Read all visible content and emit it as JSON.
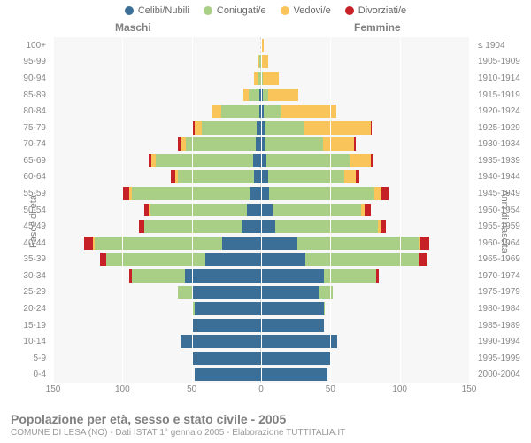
{
  "legend": [
    {
      "label": "Celibi/Nubili",
      "color": "#3b6f97"
    },
    {
      "label": "Coniugati/e",
      "color": "#a9cf86"
    },
    {
      "label": "Vedovi/e",
      "color": "#f9c45a"
    },
    {
      "label": "Divorziati/e",
      "color": "#c62127"
    }
  ],
  "gender_left": "Maschi",
  "gender_right": "Femmine",
  "y_title_left": "Fasce di età",
  "y_title_right": "Anni di nascita",
  "age_labels": [
    "100+",
    "95-99",
    "90-94",
    "85-89",
    "80-84",
    "75-79",
    "70-74",
    "65-69",
    "60-64",
    "55-59",
    "50-54",
    "45-49",
    "40-44",
    "35-39",
    "30-34",
    "25-29",
    "20-24",
    "15-19",
    "10-14",
    "5-9",
    "0-4"
  ],
  "birth_labels": [
    "≤ 1904",
    "1905-1909",
    "1910-1914",
    "1915-1919",
    "1920-1924",
    "1925-1929",
    "1930-1934",
    "1935-1939",
    "1940-1944",
    "1945-1949",
    "1950-1954",
    "1955-1959",
    "1960-1964",
    "1965-1969",
    "1970-1974",
    "1975-1979",
    "1980-1984",
    "1985-1989",
    "1990-1994",
    "1995-1999",
    "2000-2004"
  ],
  "x_ticks": [
    150,
    100,
    50,
    0,
    50,
    100,
    150
  ],
  "x_max": 150,
  "colors": {
    "blue": "#3b6f97",
    "green": "#a9cf86",
    "yellow": "#f9c45a",
    "red": "#c62127",
    "grid": "#ffffff",
    "plot_bg": "#f7f7f7"
  },
  "bars": {
    "male": [
      {
        "b": 0,
        "g": 0,
        "y": 0,
        "r": 0
      },
      {
        "b": 0,
        "g": 1,
        "y": 1,
        "r": 0
      },
      {
        "b": 0,
        "g": 2,
        "y": 3,
        "r": 0
      },
      {
        "b": 1,
        "g": 8,
        "y": 4,
        "r": 0
      },
      {
        "b": 1,
        "g": 28,
        "y": 6,
        "r": 0
      },
      {
        "b": 3,
        "g": 40,
        "y": 5,
        "r": 1
      },
      {
        "b": 4,
        "g": 50,
        "y": 4,
        "r": 2
      },
      {
        "b": 6,
        "g": 70,
        "y": 3,
        "r": 2
      },
      {
        "b": 5,
        "g": 55,
        "y": 2,
        "r": 3
      },
      {
        "b": 8,
        "g": 85,
        "y": 2,
        "r": 5
      },
      {
        "b": 10,
        "g": 70,
        "y": 1,
        "r": 3
      },
      {
        "b": 14,
        "g": 70,
        "y": 0,
        "r": 4
      },
      {
        "b": 28,
        "g": 92,
        "y": 1,
        "r": 7
      },
      {
        "b": 40,
        "g": 72,
        "y": 0,
        "r": 4
      },
      {
        "b": 55,
        "g": 38,
        "y": 0,
        "r": 2
      },
      {
        "b": 50,
        "g": 10,
        "y": 0,
        "r": 0
      },
      {
        "b": 48,
        "g": 1,
        "y": 0,
        "r": 0
      },
      {
        "b": 50,
        "g": 0,
        "y": 0,
        "r": 0
      },
      {
        "b": 58,
        "g": 0,
        "y": 0,
        "r": 0
      },
      {
        "b": 50,
        "g": 0,
        "y": 0,
        "r": 0
      },
      {
        "b": 48,
        "g": 0,
        "y": 0,
        "r": 0
      }
    ],
    "female": [
      {
        "b": 0,
        "g": 0,
        "y": 2,
        "r": 0
      },
      {
        "b": 0,
        "g": 0,
        "y": 5,
        "r": 0
      },
      {
        "b": 0,
        "g": 1,
        "y": 12,
        "r": 0
      },
      {
        "b": 1,
        "g": 4,
        "y": 22,
        "r": 0
      },
      {
        "b": 2,
        "g": 12,
        "y": 40,
        "r": 0
      },
      {
        "b": 3,
        "g": 28,
        "y": 48,
        "r": 1
      },
      {
        "b": 3,
        "g": 42,
        "y": 22,
        "r": 1
      },
      {
        "b": 4,
        "g": 60,
        "y": 15,
        "r": 2
      },
      {
        "b": 5,
        "g": 55,
        "y": 8,
        "r": 3
      },
      {
        "b": 6,
        "g": 76,
        "y": 5,
        "r": 5
      },
      {
        "b": 8,
        "g": 64,
        "y": 3,
        "r": 4
      },
      {
        "b": 10,
        "g": 74,
        "y": 2,
        "r": 4
      },
      {
        "b": 26,
        "g": 88,
        "y": 1,
        "r": 6
      },
      {
        "b": 32,
        "g": 82,
        "y": 0,
        "r": 6
      },
      {
        "b": 45,
        "g": 38,
        "y": 0,
        "r": 2
      },
      {
        "b": 42,
        "g": 10,
        "y": 0,
        "r": 0
      },
      {
        "b": 45,
        "g": 1,
        "y": 0,
        "r": 0
      },
      {
        "b": 45,
        "g": 0,
        "y": 0,
        "r": 0
      },
      {
        "b": 55,
        "g": 0,
        "y": 0,
        "r": 0
      },
      {
        "b": 50,
        "g": 0,
        "y": 0,
        "r": 0
      },
      {
        "b": 48,
        "g": 0,
        "y": 0,
        "r": 0
      }
    ]
  },
  "footer_title": "Popolazione per età, sesso e stato civile - 2005",
  "footer_sub": "COMUNE DI LESA (NO) - Dati ISTAT 1° gennaio 2005 - Elaborazione TUTTITALIA.IT"
}
